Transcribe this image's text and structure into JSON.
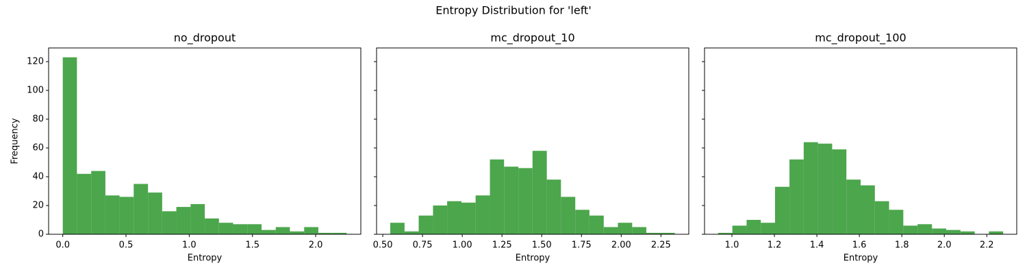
{
  "title": "Entropy Distribution for 'left'",
  "chart_data": [
    {
      "type": "histogram",
      "title": "no_dropout",
      "xlabel": "Entropy",
      "ylabel": "Frequency",
      "color": "#4ca64c",
      "bins": [
        0,
        0.112,
        0.225,
        0.337,
        0.449,
        0.561,
        0.674,
        0.786,
        0.898,
        1.011,
        1.123,
        1.235,
        1.347,
        1.46,
        1.572,
        1.684,
        1.796,
        1.909,
        2.021,
        2.133,
        2.245
      ],
      "values": [
        123,
        42,
        44,
        27,
        26,
        35,
        29,
        16,
        19,
        21,
        11,
        8,
        7,
        7,
        3,
        5,
        2,
        5,
        1,
        1
      ],
      "xlim": [
        -0.112,
        2.357
      ],
      "ylim": [
        0,
        129.5
      ],
      "xticks": [
        {
          "value": 0,
          "label": "0.0"
        },
        0.5,
        {
          "value": 1,
          "label": "1.0"
        },
        1.5,
        {
          "value": 2,
          "label": "2.0"
        }
      ],
      "yticks": [
        0,
        20,
        40,
        60,
        80,
        100,
        120
      ]
    },
    {
      "type": "histogram",
      "title": "mc_dropout_10",
      "xlabel": "Entropy",
      "color": "#4ca64c",
      "bins": [
        0.547,
        0.637,
        0.726,
        0.816,
        0.905,
        0.995,
        1.084,
        1.174,
        1.263,
        1.353,
        1.442,
        1.532,
        1.621,
        1.711,
        1.8,
        1.89,
        1.979,
        2.069,
        2.158,
        2.248,
        2.337
      ],
      "values": [
        8,
        2,
        13,
        20,
        23,
        22,
        27,
        52,
        47,
        46,
        58,
        38,
        26,
        17,
        13,
        5,
        8,
        5,
        1,
        1
      ],
      "xlim": [
        0.461,
        2.425
      ],
      "ylim": [
        0,
        129.5
      ],
      "xticks": [
        {
          "value": 0.5,
          "label": "0.50"
        },
        0.75,
        {
          "value": 1,
          "label": "1.00"
        },
        1.25,
        {
          "value": 1.5,
          "label": "1.50"
        },
        1.75,
        {
          "value": 2,
          "label": "2.00"
        },
        2.25
      ]
    },
    {
      "type": "histogram",
      "title": "mc_dropout_100",
      "xlabel": "Entropy",
      "color": "#4ca64c",
      "bins": [
        0.935,
        1.002,
        1.069,
        1.136,
        1.203,
        1.271,
        1.338,
        1.405,
        1.472,
        1.539,
        1.606,
        1.673,
        1.74,
        1.807,
        1.874,
        1.942,
        2.009,
        2.076,
        2.143,
        2.21,
        2.277
      ],
      "values": [
        1,
        6,
        10,
        8,
        33,
        52,
        64,
        63,
        59,
        38,
        34,
        23,
        17,
        6,
        7,
        4,
        3,
        2,
        0,
        2
      ],
      "xlim": [
        0.871,
        2.341
      ],
      "ylim": [
        0,
        129.5
      ],
      "xticks": [
        {
          "value": 1,
          "label": "1.0"
        },
        1.2,
        1.4,
        1.6,
        1.8,
        {
          "value": 2,
          "label": "2.0"
        },
        2.2
      ]
    }
  ]
}
